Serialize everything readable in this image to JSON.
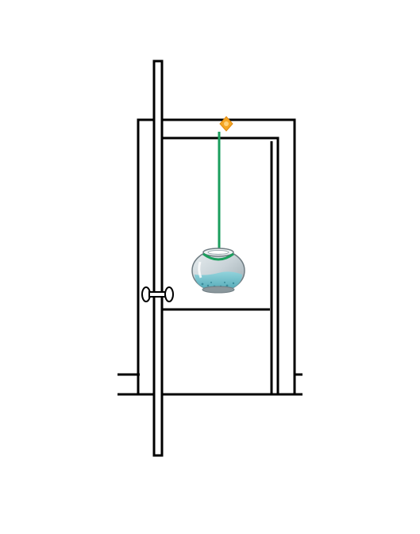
{
  "scene": {
    "description_free": true,
    "colors": {
      "background": "#ffffff",
      "outline": "#000000",
      "string": "#1a9e5c",
      "tack": "#f5a623",
      "bowl_glass": "#c9d3d8",
      "bowl_water": "#5fb8c4",
      "bowl_gravel": "#3a8a9a"
    },
    "icons": {
      "tack": "pushpin-icon",
      "bowl": "fishbowl-icon",
      "knob": "door-knob-icon"
    }
  }
}
